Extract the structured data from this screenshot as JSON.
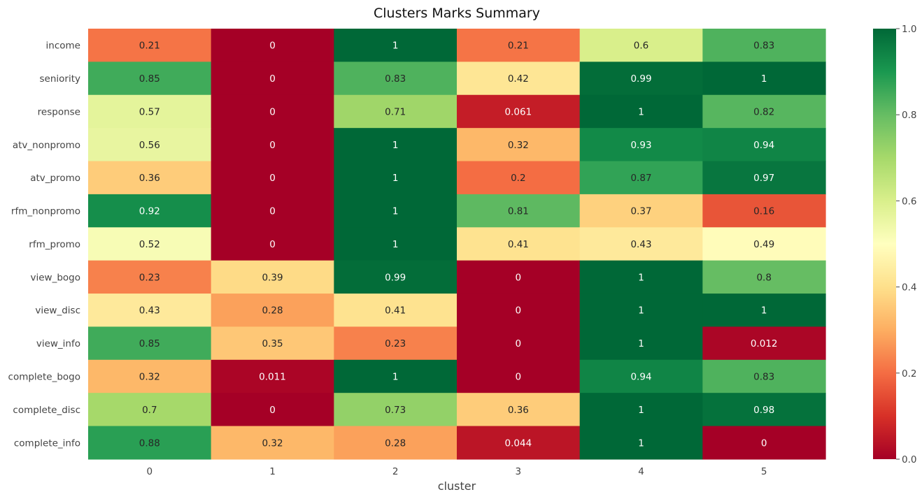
{
  "chart_data": {
    "type": "heatmap",
    "title": "Clusters Marks Summary",
    "xlabel": "cluster",
    "ylabel": "",
    "x_categories": [
      "0",
      "1",
      "2",
      "3",
      "4",
      "5"
    ],
    "y_categories": [
      "income",
      "seniority",
      "response",
      "atv_nonpromo",
      "atv_promo",
      "rfm_nonpromo",
      "rfm_promo",
      "view_bogo",
      "view_disc",
      "view_info",
      "complete_bogo",
      "complete_disc",
      "complete_info"
    ],
    "values": [
      [
        0.21,
        0,
        1,
        0.21,
        0.6,
        0.83
      ],
      [
        0.85,
        0,
        0.83,
        0.42,
        0.99,
        1
      ],
      [
        0.57,
        0,
        0.71,
        0.061,
        1,
        0.82
      ],
      [
        0.56,
        0,
        1,
        0.32,
        0.93,
        0.94
      ],
      [
        0.36,
        0,
        1,
        0.2,
        0.87,
        0.97
      ],
      [
        0.92,
        0,
        1,
        0.81,
        0.37,
        0.16
      ],
      [
        0.52,
        0,
        1,
        0.41,
        0.43,
        0.49
      ],
      [
        0.23,
        0.39,
        0.99,
        0,
        1,
        0.8
      ],
      [
        0.43,
        0.28,
        0.41,
        0,
        1,
        1
      ],
      [
        0.85,
        0.35,
        0.23,
        0,
        1,
        0.012
      ],
      [
        0.32,
        0.011,
        1,
        0,
        0.94,
        0.83
      ],
      [
        0.7,
        0,
        0.73,
        0.36,
        1,
        0.98
      ],
      [
        0.88,
        0.32,
        0.28,
        0.044,
        1,
        0
      ]
    ],
    "colorscale": "RdYlGn",
    "colorbar": {
      "range": [
        0,
        1
      ],
      "ticks": [
        "0.0",
        "0.2",
        "0.4",
        "0.6",
        "0.8",
        "1.0"
      ]
    },
    "grid": false,
    "annotations": true
  }
}
